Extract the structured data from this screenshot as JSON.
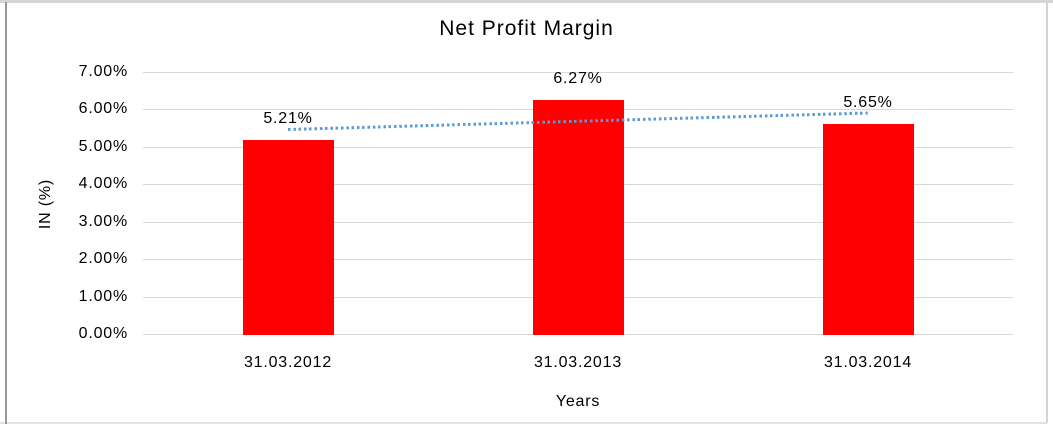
{
  "chart_data": {
    "type": "bar",
    "title": "Net Profit Margin",
    "xlabel": "Years",
    "ylabel": "IN (%)",
    "categories": [
      "31.03.2012",
      "31.03.2013",
      "31.03.2014"
    ],
    "values": [
      5.21,
      6.27,
      5.65
    ],
    "data_labels": [
      "5.21%",
      "6.27%",
      "5.65%"
    ],
    "ylim": [
      0,
      7
    ],
    "ytick_step": 1,
    "ytick_labels": [
      "0.00%",
      "1.00%",
      "2.00%",
      "3.00%",
      "4.00%",
      "5.00%",
      "6.00%",
      "7.00%"
    ],
    "grid": true,
    "legend_position": "none",
    "bar_color": "#FF0000",
    "gridline_color": "#D9D9D9",
    "text_color": "#000000",
    "trendline": {
      "type": "linear",
      "style": "dotted",
      "color": "#5B9BD5"
    }
  }
}
